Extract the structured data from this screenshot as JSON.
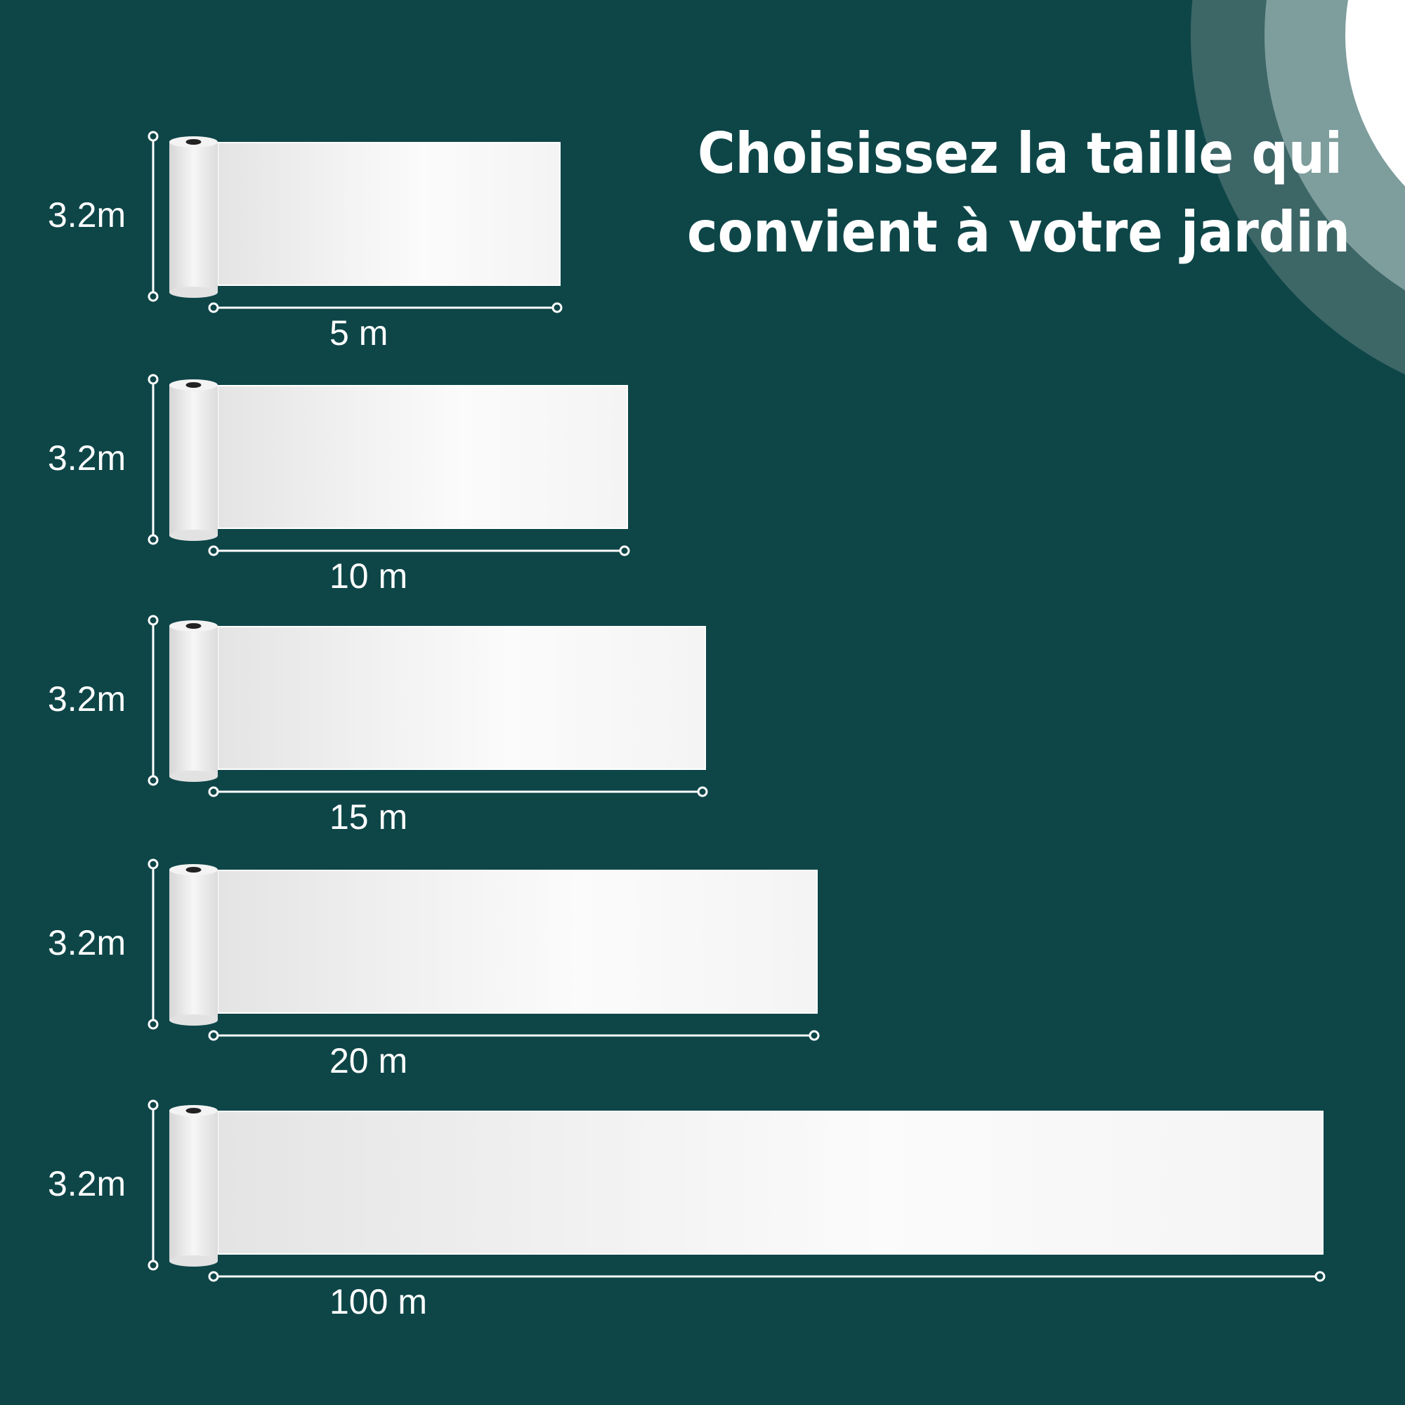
{
  "title": {
    "line1": "Choisissez la taille qui",
    "line2": "convient à votre jardin"
  },
  "rolls": [
    {
      "height": "3.2m",
      "length": "5 m"
    },
    {
      "height": "3.2m",
      "length": "10 m"
    },
    {
      "height": "3.2m",
      "length": "15 m"
    },
    {
      "height": "3.2m",
      "length": "20 m"
    },
    {
      "height": "3.2m",
      "length": "100 m"
    }
  ]
}
